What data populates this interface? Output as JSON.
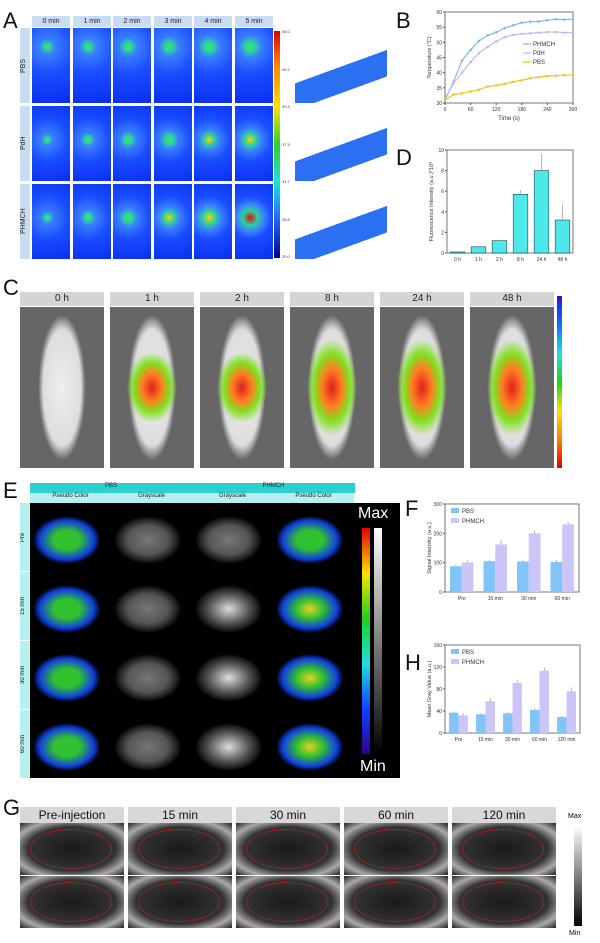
{
  "panels": {
    "a": "A",
    "b": "B",
    "c": "C",
    "d": "D",
    "e": "E",
    "f": "F",
    "g": "G",
    "h": "H"
  },
  "panelA": {
    "times": [
      "0 min",
      "1 min",
      "2 min",
      "3 min",
      "4 min",
      "5 min"
    ],
    "groups": [
      "PBS",
      "PdH",
      "PHMCH"
    ],
    "colorbar": [
      "55.0",
      "49.2",
      "43.3",
      "37.5",
      "31.7",
      "25.8",
      "20.0"
    ]
  },
  "panelC": {
    "times": [
      "0 h",
      "1 h",
      "2 h",
      "8 h",
      "24 h",
      "48 h"
    ]
  },
  "panelE": {
    "groups": [
      "PBS",
      "PHMCH"
    ],
    "modes": [
      "Pseudo Color",
      "Grayscale",
      "Grayscale",
      "Pseudo Color"
    ],
    "rows": [
      "Pre",
      "15 min",
      "30 min",
      "60 min"
    ],
    "max": "Max",
    "min": "Min"
  },
  "panelG": {
    "times": [
      "Pre-injection",
      "15 min",
      "30 min",
      "60 min",
      "120 min"
    ],
    "max": "Max",
    "min": "Min"
  },
  "colors": {
    "phmch": "#7fb8f5",
    "pdh": "#c4b8f2",
    "pbs": "#f5c31a",
    "cyan": "#4fe8ea",
    "blue": "#82c4f8",
    "lav": "#cbc6f7"
  },
  "chart_data": [
    {
      "id": "B",
      "type": "line",
      "xlabel": "Time (s)",
      "ylabel": "Temperature (°C)",
      "xlim": [
        0,
        300
      ],
      "ylim": [
        30,
        60
      ],
      "xticks": [
        0,
        60,
        120,
        180,
        240,
        300
      ],
      "yticks": [
        30,
        35,
        40,
        45,
        50,
        55,
        60
      ],
      "legend": "right",
      "x": [
        0,
        20,
        40,
        60,
        80,
        100,
        120,
        140,
        160,
        180,
        200,
        220,
        240,
        260,
        280,
        300
      ],
      "series": [
        {
          "name": "PHMCH",
          "color": "#7fb8f5",
          "values": [
            31,
            37,
            44,
            47.5,
            50.5,
            52.3,
            53.3,
            54.7,
            55.6,
            56.5,
            56.8,
            56.9,
            57.3,
            57.6,
            57.5,
            57.6
          ]
        },
        {
          "name": "PdH",
          "color": "#c4b8f2",
          "values": [
            31.5,
            36.5,
            40,
            43.5,
            46.5,
            48.5,
            50.3,
            51.7,
            52.5,
            52.8,
            53,
            53.2,
            53.4,
            53.4,
            53.2,
            53.2
          ]
        },
        {
          "name": "PBS",
          "color": "#f5c31a",
          "values": [
            31,
            32.8,
            33.2,
            33.8,
            34.4,
            35.4,
            35.8,
            36.3,
            37,
            37.5,
            38.2,
            38.5,
            38.9,
            39,
            39.2,
            39.3
          ]
        }
      ]
    },
    {
      "id": "D",
      "type": "bar",
      "ylabel": "Fluorescence Intensity (a.u.)*10⁸",
      "ylim": [
        0,
        10
      ],
      "yticks": [
        0,
        2,
        4,
        6,
        8,
        10
      ],
      "categories": [
        "0 h",
        "1 h",
        "2 h",
        "8 h",
        "24 h",
        "48 h"
      ],
      "series": [
        {
          "name": "Fluorescence",
          "color": "#4fe8ea",
          "values": [
            0.1,
            0.6,
            1.2,
            5.7,
            8.0,
            3.2
          ],
          "errors": [
            0,
            0.05,
            0.1,
            0.4,
            1.7,
            1.6
          ]
        }
      ]
    },
    {
      "id": "F",
      "type": "bar",
      "ylabel": "Signal Intensity (a.u.)",
      "ylim": [
        0,
        300
      ],
      "yticks": [
        0,
        100,
        200,
        300
      ],
      "legend": "top-left",
      "categories": [
        "Pre",
        "15 min",
        "30 min",
        "60 min"
      ],
      "series": [
        {
          "name": "PBS",
          "color": "#82c4f8",
          "values": [
            88,
            105,
            104,
            102
          ],
          "errors": [
            5,
            4,
            5,
            7
          ]
        },
        {
          "name": "PHMCH",
          "color": "#cbc6f7",
          "values": [
            101,
            162,
            200,
            231
          ],
          "errors": [
            7,
            16,
            11,
            8
          ]
        }
      ]
    },
    {
      "id": "H",
      "type": "bar",
      "ylabel": "Mean Gray Value (a.u.)",
      "ylim": [
        0,
        160
      ],
      "yticks": [
        0,
        40,
        80,
        120,
        160
      ],
      "legend": "top-left",
      "categories": [
        "Pre",
        "15 min",
        "30 min",
        "60 min",
        "120 min"
      ],
      "series": [
        {
          "name": "PBS",
          "color": "#82c4f8",
          "values": [
            37,
            34,
            36,
            42,
            29
          ],
          "errors": [
            2,
            2,
            2,
            3,
            2
          ]
        },
        {
          "name": "PHMCH",
          "color": "#cbc6f7",
          "values": [
            32,
            58,
            91,
            113,
            76
          ],
          "errors": [
            4,
            6,
            6,
            6,
            7
          ]
        }
      ]
    }
  ]
}
